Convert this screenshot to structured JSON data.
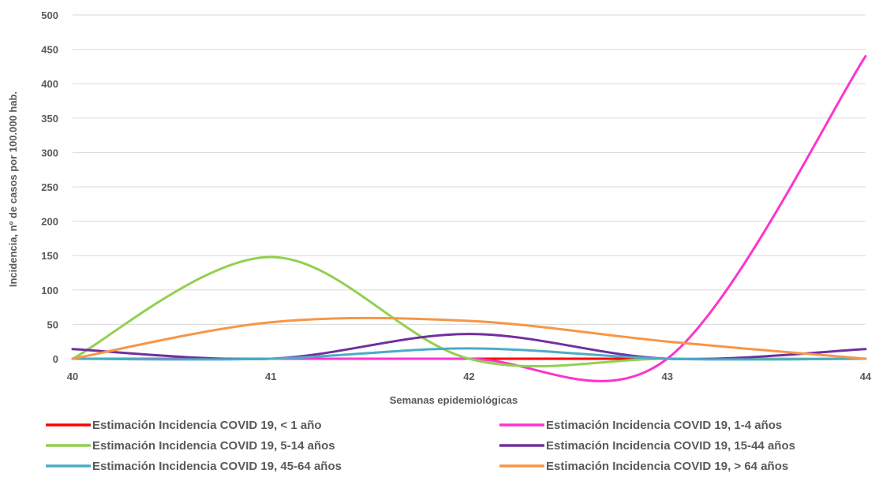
{
  "chart_data": {
    "type": "line",
    "xlabel": "Semanas epidemiológicas",
    "ylabel": "Incidencia, nº de casos por 100.000 hab.",
    "x": [
      40,
      41,
      42,
      43,
      44
    ],
    "xlim": [
      40,
      44
    ],
    "ylim": [
      0,
      500
    ],
    "yticks": [
      0,
      50,
      100,
      150,
      200,
      250,
      300,
      350,
      400,
      450,
      500
    ],
    "grid": true,
    "smooth": true,
    "legend_position": "bottom",
    "series": [
      {
        "name": "Estimación Incidencia COVID 19, < 1 año",
        "color": "#ff0000",
        "values": [
          0,
          0,
          0,
          0,
          0
        ]
      },
      {
        "name": "Estimación Incidencia COVID 19, 1-4 años",
        "color": "#ff33cc",
        "values": [
          0,
          0,
          0,
          0,
          440
        ]
      },
      {
        "name": "Estimación Incidencia COVID 19, 5-14 años",
        "color": "#92d050",
        "values": [
          0,
          148,
          0,
          0,
          0
        ]
      },
      {
        "name": "Estimación Incidencia COVID 19, 15-44 años",
        "color": "#7030a0",
        "values": [
          14,
          0,
          36,
          0,
          14
        ]
      },
      {
        "name": "Estimación Incidencia COVID 19, 45-64 años",
        "color": "#4bacc6",
        "values": [
          0,
          0,
          15,
          0,
          0
        ]
      },
      {
        "name": "Estimación Incidencia COVID 19, > 64 años",
        "color": "#f79646",
        "values": [
          0,
          53,
          55,
          25,
          0
        ]
      }
    ]
  }
}
